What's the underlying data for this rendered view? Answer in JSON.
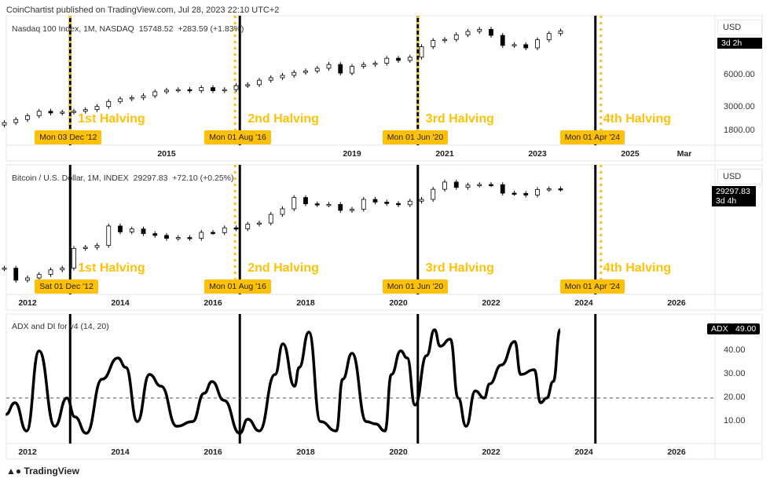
{
  "header": "CoinChartist published on TradingView.com, Jul 28, 2023 22:10 UTC+2",
  "footer": {
    "logo": "TradingView"
  },
  "colors": {
    "halving": "#ffc107",
    "line": "#000000"
  },
  "chart_data": [
    {
      "type": "candlestick",
      "title": "Nasdaq 100 Index, 1M, NASDAQ",
      "last": "15748.52",
      "change": "+283.59 (+1.83%)",
      "scale": "log",
      "currency": "USD",
      "countdown": "3d 2h",
      "y_ticks": [
        "6000.00",
        "3000.00",
        "1800.00"
      ],
      "x_ticks": [
        {
          "label": "2015",
          "year": 2015
        },
        {
          "label": "2019",
          "year": 2019
        },
        {
          "label": "2021",
          "year": 2021
        },
        {
          "label": "2023",
          "year": 2023
        },
        {
          "label": "2025",
          "year": 2025
        },
        {
          "label": "Mar",
          "year": 2026.17
        }
      ],
      "markers": [
        {
          "label": "Mon 03 Dec '12",
          "text": "1st Halving"
        },
        {
          "label": "Mon 01 Aug '16",
          "text": "2nd Halving"
        },
        {
          "label": "Mon 01 Jun '20",
          "text": "3rd Halving"
        },
        {
          "label": "Mon 01 Apr '24",
          "text": "4th Halving"
        }
      ],
      "x": [
        2011.5,
        2011.75,
        2012,
        2012.25,
        2012.5,
        2012.75,
        2013,
        2013.25,
        2013.5,
        2013.75,
        2014,
        2014.25,
        2014.5,
        2014.75,
        2015,
        2015.25,
        2015.5,
        2015.75,
        2016,
        2016.25,
        2016.5,
        2016.75,
        2017,
        2017.25,
        2017.5,
        2017.75,
        2018,
        2018.25,
        2018.5,
        2018.75,
        2019,
        2019.25,
        2019.5,
        2019.75,
        2020,
        2020.25,
        2020.5,
        2020.75,
        2021,
        2021.25,
        2021.5,
        2021.75,
        2022,
        2022.25,
        2022.5,
        2022.75,
        2023,
        2023.25,
        2023.5
      ],
      "close": [
        2150,
        2300,
        2500,
        2750,
        2650,
        2700,
        2750,
        2850,
        3050,
        3400,
        3600,
        3700,
        3850,
        4200,
        4350,
        4400,
        4300,
        4600,
        4300,
        4400,
        4800,
        4900,
        5400,
        5700,
        6000,
        6400,
        6600,
        7000,
        7600,
        6300,
        7300,
        7600,
        7800,
        8700,
        8300,
        8900,
        11200,
        12800,
        13100,
        14500,
        15600,
        16300,
        14300,
        11500,
        11700,
        10900,
        13000,
        14900,
        15748.52
      ]
    },
    {
      "type": "candlestick",
      "title": "Bitcoin / U.S. Dollar, 1M, INDEX",
      "last": "29297.83",
      "change": "+72.10 (+0.25%)",
      "scale": "log",
      "currency": "USD",
      "countdown": "3d 4h",
      "x_ticks": [
        {
          "label": "2012",
          "year": 2012
        },
        {
          "label": "2014",
          "year": 2014
        },
        {
          "label": "2016",
          "year": 2016
        },
        {
          "label": "2018",
          "year": 2018
        },
        {
          "label": "2020",
          "year": 2020
        },
        {
          "label": "2022",
          "year": 2022
        },
        {
          "label": "2024",
          "year": 2024
        },
        {
          "label": "2026",
          "year": 2026
        }
      ],
      "markers": [
        {
          "label": "Sat 01 Dec '12",
          "text": "1st Halving"
        },
        {
          "label": "Mon 01 Aug '16",
          "text": "2nd Halving"
        },
        {
          "label": "Mon 01 Jun '20",
          "text": "3rd Halving"
        },
        {
          "label": "Mon 01 Apr '24",
          "text": "4th Halving"
        }
      ],
      "x": [
        2011.5,
        2011.75,
        2012,
        2012.25,
        2012.5,
        2012.75,
        2013,
        2013.25,
        2013.5,
        2013.75,
        2014,
        2014.25,
        2014.5,
        2014.75,
        2015,
        2015.25,
        2015.5,
        2015.75,
        2016,
        2016.25,
        2016.5,
        2016.75,
        2017,
        2017.25,
        2017.5,
        2017.75,
        2018,
        2018.25,
        2018.5,
        2018.75,
        2019,
        2019.25,
        2019.5,
        2019.75,
        2020,
        2020.25,
        2020.5,
        2020.75,
        2021,
        2021.25,
        2021.5,
        2021.75,
        2022,
        2022.25,
        2022.5,
        2022.75,
        2023,
        2023.25,
        2023.5
      ],
      "close": [
        13,
        4,
        5,
        7,
        11,
        13,
        90,
        100,
        120,
        800,
        450,
        600,
        380,
        320,
        240,
        260,
        240,
        430,
        420,
        670,
        610,
        960,
        1070,
        2500,
        4300,
        13000,
        7000,
        6400,
        6600,
        3700,
        4100,
        10800,
        8300,
        7200,
        6400,
        9100,
        10800,
        29000,
        58800,
        35000,
        43800,
        46300,
        45500,
        19900,
        19400,
        16500,
        28400,
        30400,
        29297.83
      ]
    },
    {
      "type": "line",
      "title": "ADX and DI for v4 (14, 20)",
      "series_name": "ADX",
      "last": "49.00",
      "reference_level": 20,
      "ylim": [
        0,
        55
      ],
      "y_ticks": [
        "40.00",
        "30.00",
        "20.00",
        "10.00"
      ],
      "x_ticks": [
        {
          "label": "2012",
          "year": 2012
        },
        {
          "label": "2014",
          "year": 2014
        },
        {
          "label": "2016",
          "year": 2016
        },
        {
          "label": "2018",
          "year": 2018
        },
        {
          "label": "2020",
          "year": 2020
        },
        {
          "label": "2022",
          "year": 2022
        },
        {
          "label": "2024",
          "year": 2024
        },
        {
          "label": "2026",
          "year": 2026
        }
      ],
      "x": [
        2011.53,
        2011.73,
        2011.98,
        2012.25,
        2012.59,
        2012.85,
        2013.02,
        2013.27,
        2013.61,
        2013.95,
        2014.12,
        2014.37,
        2014.63,
        2014.88,
        2015.22,
        2015.56,
        2015.81,
        2015.98,
        2016.24,
        2016.58,
        2016.75,
        2017.0,
        2017.34,
        2017.51,
        2017.76,
        2017.86,
        2018.07,
        2018.32,
        2018.66,
        2018.8,
        2019.0,
        2019.31,
        2019.51,
        2019.71,
        2019.85,
        2020.05,
        2020.19,
        2020.36,
        2020.61,
        2020.78,
        2020.9,
        2021.12,
        2021.29,
        2021.46,
        2021.66,
        2021.85,
        2021.97,
        2022.22,
        2022.51,
        2022.64,
        2022.93,
        2023.07,
        2023.2,
        2023.34,
        2023.49
      ],
      "values": [
        13,
        18,
        6,
        40,
        8,
        20,
        12,
        5,
        28,
        37,
        33,
        10,
        30,
        25,
        8,
        10,
        22,
        27,
        19,
        5,
        11,
        6,
        30,
        43,
        25,
        33,
        48,
        10,
        6,
        28,
        39,
        10,
        9,
        6,
        30,
        40,
        37,
        17,
        38,
        49,
        42,
        45,
        20,
        8,
        23,
        20,
        26,
        34,
        44,
        30,
        32,
        18,
        20,
        27,
        49
      ]
    }
  ]
}
